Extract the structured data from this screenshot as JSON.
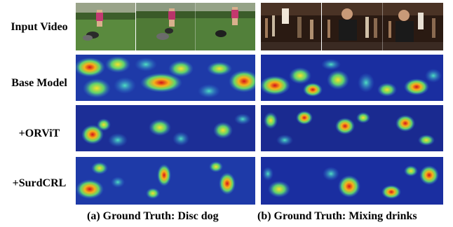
{
  "rows": [
    {
      "label": "Input Video",
      "kind": "input"
    },
    {
      "label": "Base Model",
      "kind": "heat"
    },
    {
      "label": "+ORViT",
      "kind": "heat"
    },
    {
      "label": "+SurdCRL",
      "kind": "heat"
    }
  ],
  "captions": {
    "left": "(a) Ground Truth: Disc dog",
    "right": "(b) Ground Truth: Mixing drinks"
  },
  "colors": {
    "heatmap_base": "#1a2fa0",
    "grass": "#4f7a36",
    "bar": "#2a1a12"
  }
}
